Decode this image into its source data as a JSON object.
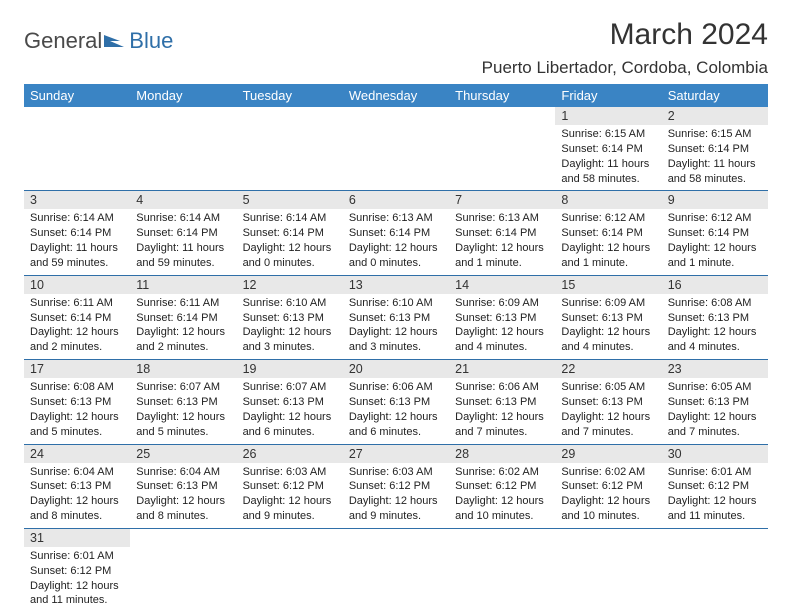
{
  "logo": {
    "text1": "General",
    "text2": "Blue",
    "icon_color": "#2f6fa8"
  },
  "header": {
    "month_title": "March 2024",
    "location": "Puerto Libertador, Cordoba, Colombia"
  },
  "colors": {
    "header_bg": "#3a84c4",
    "header_text": "#ffffff",
    "daynum_bg": "#e8e8e8",
    "row_border": "#2f6fa8",
    "body_text": "#222222"
  },
  "daysOfWeek": [
    "Sunday",
    "Monday",
    "Tuesday",
    "Wednesday",
    "Thursday",
    "Friday",
    "Saturday"
  ],
  "weeks": [
    [
      null,
      null,
      null,
      null,
      null,
      {
        "n": "1",
        "sr": "Sunrise: 6:15 AM",
        "ss": "Sunset: 6:14 PM",
        "dl": "Daylight: 11 hours and 58 minutes."
      },
      {
        "n": "2",
        "sr": "Sunrise: 6:15 AM",
        "ss": "Sunset: 6:14 PM",
        "dl": "Daylight: 11 hours and 58 minutes."
      }
    ],
    [
      {
        "n": "3",
        "sr": "Sunrise: 6:14 AM",
        "ss": "Sunset: 6:14 PM",
        "dl": "Daylight: 11 hours and 59 minutes."
      },
      {
        "n": "4",
        "sr": "Sunrise: 6:14 AM",
        "ss": "Sunset: 6:14 PM",
        "dl": "Daylight: 11 hours and 59 minutes."
      },
      {
        "n": "5",
        "sr": "Sunrise: 6:14 AM",
        "ss": "Sunset: 6:14 PM",
        "dl": "Daylight: 12 hours and 0 minutes."
      },
      {
        "n": "6",
        "sr": "Sunrise: 6:13 AM",
        "ss": "Sunset: 6:14 PM",
        "dl": "Daylight: 12 hours and 0 minutes."
      },
      {
        "n": "7",
        "sr": "Sunrise: 6:13 AM",
        "ss": "Sunset: 6:14 PM",
        "dl": "Daylight: 12 hours and 1 minute."
      },
      {
        "n": "8",
        "sr": "Sunrise: 6:12 AM",
        "ss": "Sunset: 6:14 PM",
        "dl": "Daylight: 12 hours and 1 minute."
      },
      {
        "n": "9",
        "sr": "Sunrise: 6:12 AM",
        "ss": "Sunset: 6:14 PM",
        "dl": "Daylight: 12 hours and 1 minute."
      }
    ],
    [
      {
        "n": "10",
        "sr": "Sunrise: 6:11 AM",
        "ss": "Sunset: 6:14 PM",
        "dl": "Daylight: 12 hours and 2 minutes."
      },
      {
        "n": "11",
        "sr": "Sunrise: 6:11 AM",
        "ss": "Sunset: 6:14 PM",
        "dl": "Daylight: 12 hours and 2 minutes."
      },
      {
        "n": "12",
        "sr": "Sunrise: 6:10 AM",
        "ss": "Sunset: 6:13 PM",
        "dl": "Daylight: 12 hours and 3 minutes."
      },
      {
        "n": "13",
        "sr": "Sunrise: 6:10 AM",
        "ss": "Sunset: 6:13 PM",
        "dl": "Daylight: 12 hours and 3 minutes."
      },
      {
        "n": "14",
        "sr": "Sunrise: 6:09 AM",
        "ss": "Sunset: 6:13 PM",
        "dl": "Daylight: 12 hours and 4 minutes."
      },
      {
        "n": "15",
        "sr": "Sunrise: 6:09 AM",
        "ss": "Sunset: 6:13 PM",
        "dl": "Daylight: 12 hours and 4 minutes."
      },
      {
        "n": "16",
        "sr": "Sunrise: 6:08 AM",
        "ss": "Sunset: 6:13 PM",
        "dl": "Daylight: 12 hours and 4 minutes."
      }
    ],
    [
      {
        "n": "17",
        "sr": "Sunrise: 6:08 AM",
        "ss": "Sunset: 6:13 PM",
        "dl": "Daylight: 12 hours and 5 minutes."
      },
      {
        "n": "18",
        "sr": "Sunrise: 6:07 AM",
        "ss": "Sunset: 6:13 PM",
        "dl": "Daylight: 12 hours and 5 minutes."
      },
      {
        "n": "19",
        "sr": "Sunrise: 6:07 AM",
        "ss": "Sunset: 6:13 PM",
        "dl": "Daylight: 12 hours and 6 minutes."
      },
      {
        "n": "20",
        "sr": "Sunrise: 6:06 AM",
        "ss": "Sunset: 6:13 PM",
        "dl": "Daylight: 12 hours and 6 minutes."
      },
      {
        "n": "21",
        "sr": "Sunrise: 6:06 AM",
        "ss": "Sunset: 6:13 PM",
        "dl": "Daylight: 12 hours and 7 minutes."
      },
      {
        "n": "22",
        "sr": "Sunrise: 6:05 AM",
        "ss": "Sunset: 6:13 PM",
        "dl": "Daylight: 12 hours and 7 minutes."
      },
      {
        "n": "23",
        "sr": "Sunrise: 6:05 AM",
        "ss": "Sunset: 6:13 PM",
        "dl": "Daylight: 12 hours and 7 minutes."
      }
    ],
    [
      {
        "n": "24",
        "sr": "Sunrise: 6:04 AM",
        "ss": "Sunset: 6:13 PM",
        "dl": "Daylight: 12 hours and 8 minutes."
      },
      {
        "n": "25",
        "sr": "Sunrise: 6:04 AM",
        "ss": "Sunset: 6:13 PM",
        "dl": "Daylight: 12 hours and 8 minutes."
      },
      {
        "n": "26",
        "sr": "Sunrise: 6:03 AM",
        "ss": "Sunset: 6:12 PM",
        "dl": "Daylight: 12 hours and 9 minutes."
      },
      {
        "n": "27",
        "sr": "Sunrise: 6:03 AM",
        "ss": "Sunset: 6:12 PM",
        "dl": "Daylight: 12 hours and 9 minutes."
      },
      {
        "n": "28",
        "sr": "Sunrise: 6:02 AM",
        "ss": "Sunset: 6:12 PM",
        "dl": "Daylight: 12 hours and 10 minutes."
      },
      {
        "n": "29",
        "sr": "Sunrise: 6:02 AM",
        "ss": "Sunset: 6:12 PM",
        "dl": "Daylight: 12 hours and 10 minutes."
      },
      {
        "n": "30",
        "sr": "Sunrise: 6:01 AM",
        "ss": "Sunset: 6:12 PM",
        "dl": "Daylight: 12 hours and 11 minutes."
      }
    ],
    [
      {
        "n": "31",
        "sr": "Sunrise: 6:01 AM",
        "ss": "Sunset: 6:12 PM",
        "dl": "Daylight: 12 hours and 11 minutes."
      },
      null,
      null,
      null,
      null,
      null,
      null
    ]
  ]
}
